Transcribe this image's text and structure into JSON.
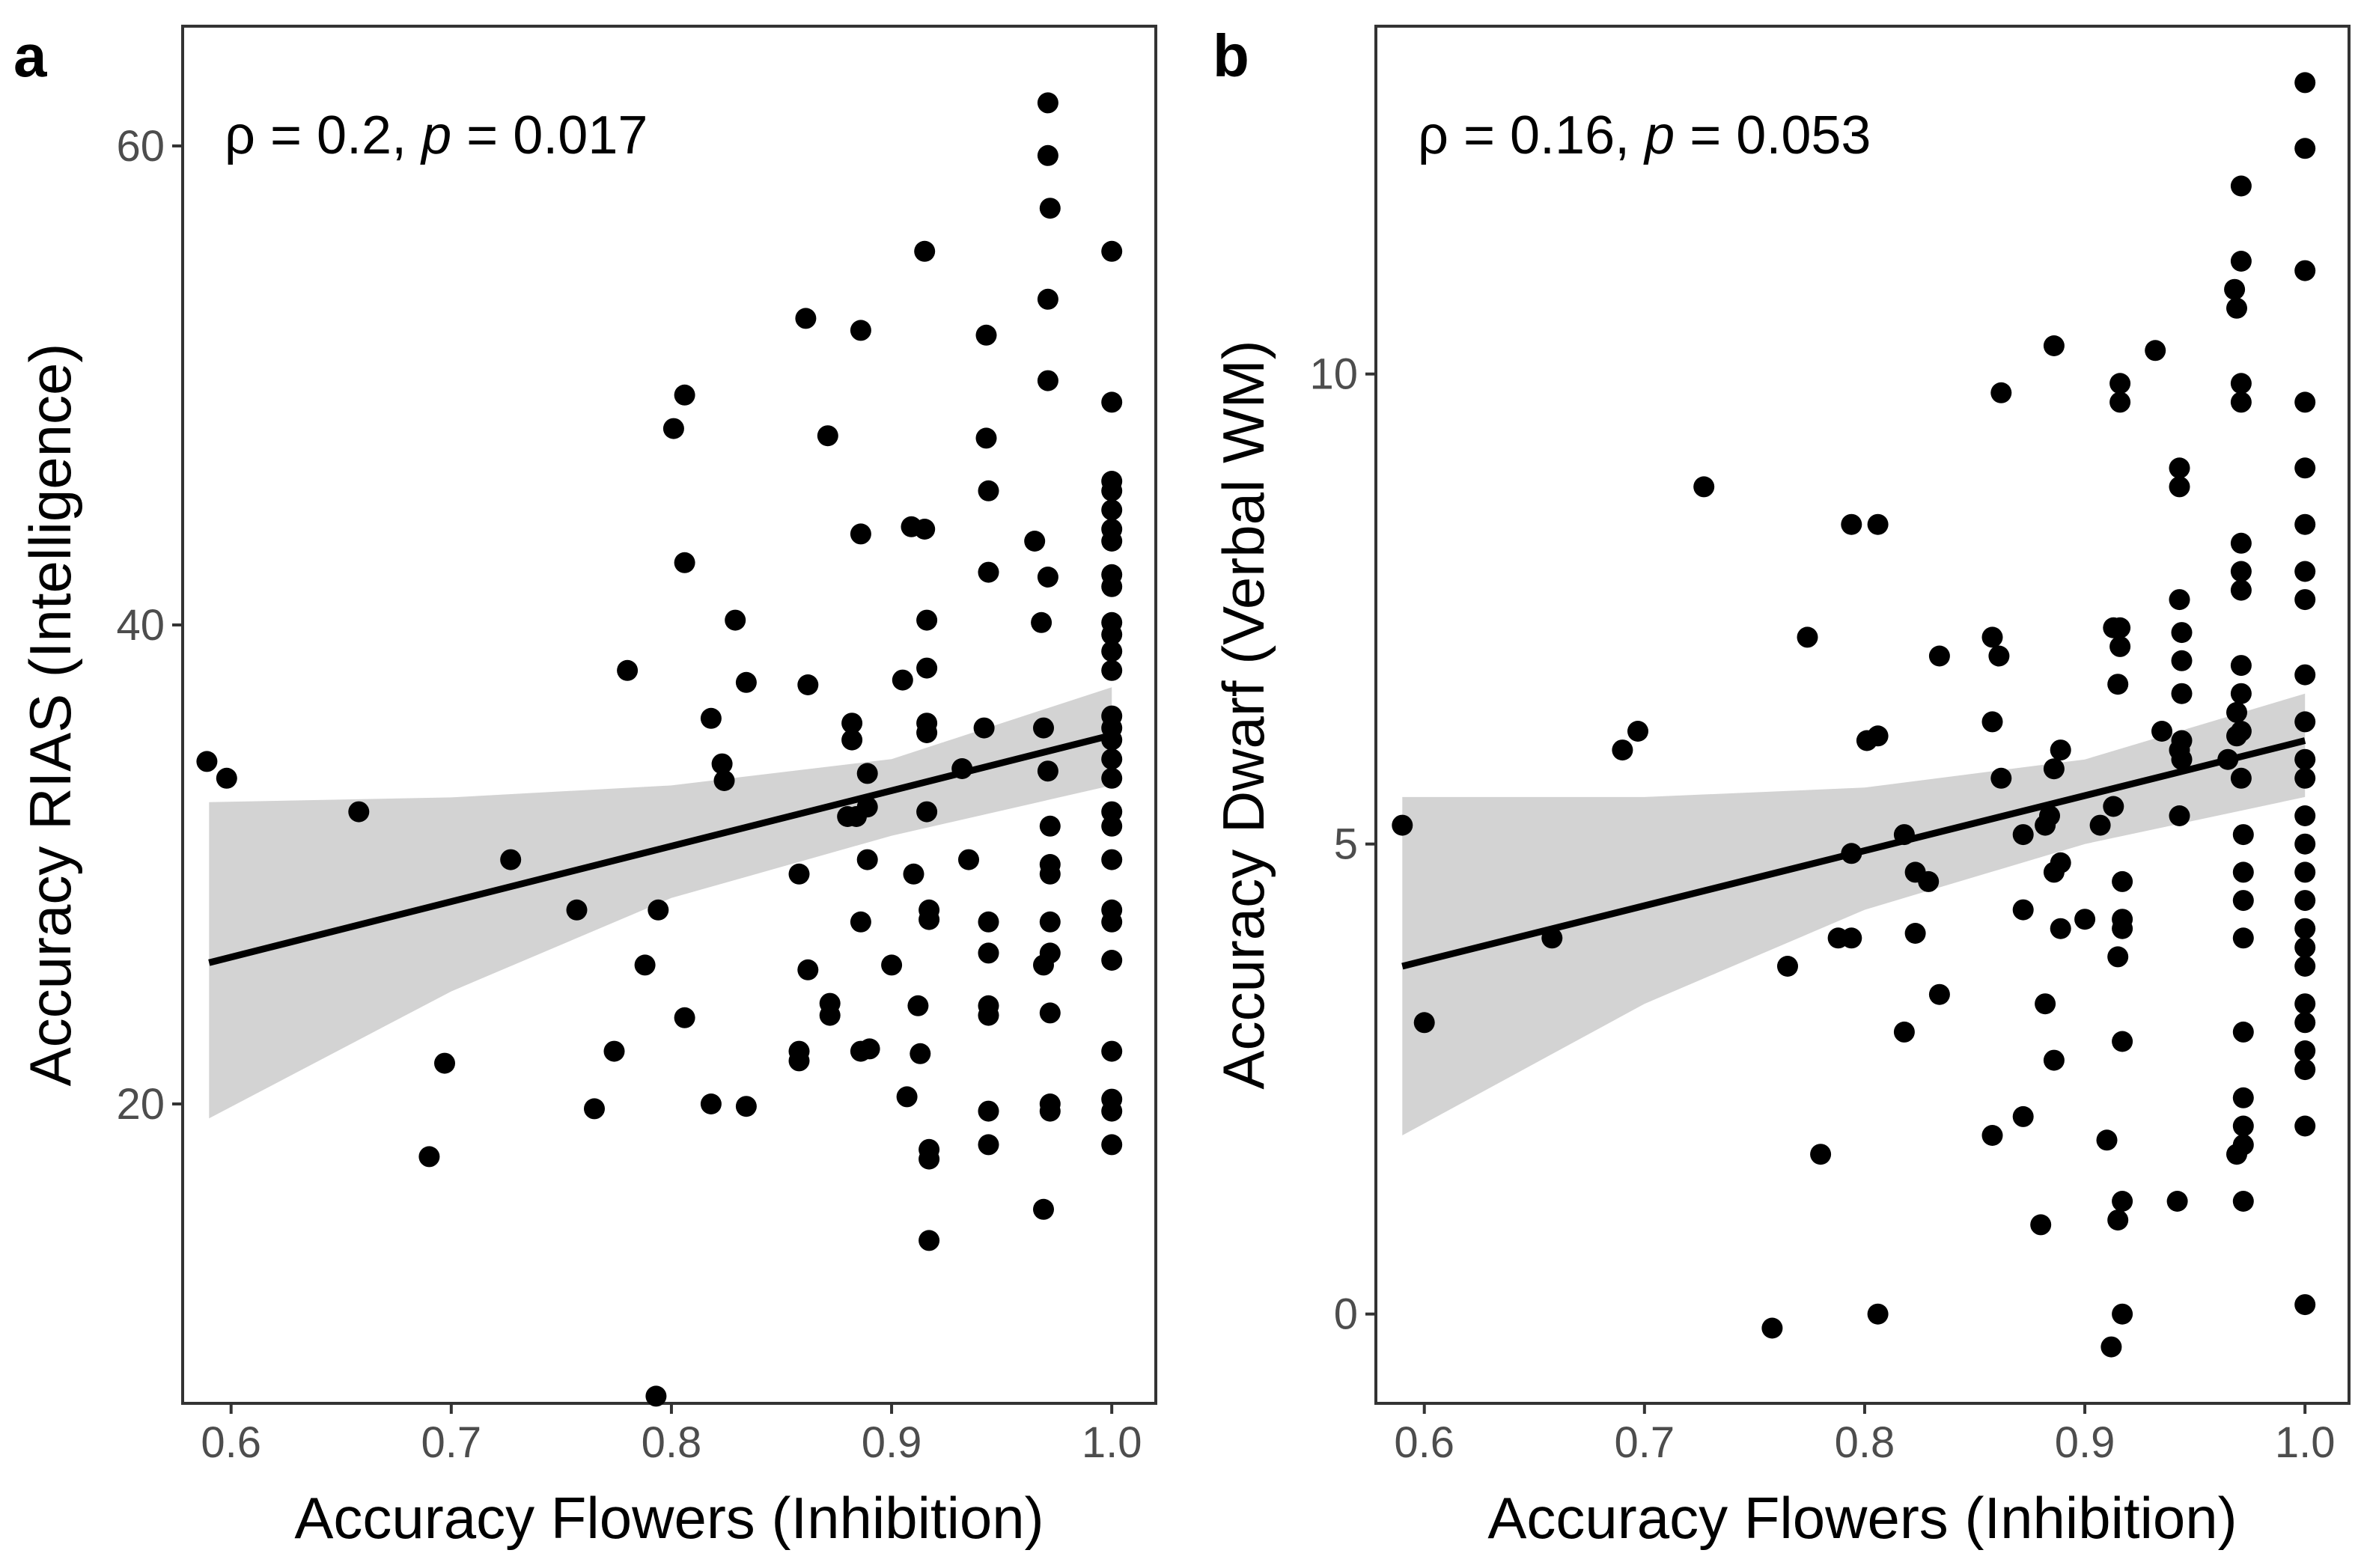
{
  "chart_data": [
    {
      "panel": "a",
      "type": "scatter",
      "xlabel": "Accuracy Flowers (Inhibition)",
      "ylabel": "Accuracy RIAS (Intelligence)",
      "annotation": {
        "rho": "ρ = 0.2,",
        "p": "p = 0.017"
      },
      "xlim": [
        0.578,
        1.02
      ],
      "ylim": [
        7.5,
        65
      ],
      "xticks": [
        0.6,
        0.7,
        0.8,
        0.9,
        1.0
      ],
      "xtick_labels": [
        "0.6",
        "0.7",
        "0.8",
        "0.9",
        "1.0"
      ],
      "yticks": [
        20,
        40,
        60
      ],
      "ytick_labels": [
        "20",
        "40",
        "60"
      ],
      "grid": false,
      "colors": {
        "points": "#000000",
        "line": "#000000",
        "band": "#d3d3d3"
      },
      "regression": {
        "x": [
          0.59,
          1.0
        ],
        "y": [
          25.9,
          35.4
        ]
      },
      "confidence_band": {
        "x": [
          0.59,
          0.7,
          0.8,
          0.9,
          1.0
        ],
        "lower": [
          19.4,
          24.7,
          28.6,
          31.2,
          33.3
        ],
        "upper": [
          32.6,
          32.8,
          33.3,
          34.4,
          37.4
        ]
      },
      "points": [
        [
          0.589,
          34.3
        ],
        [
          0.598,
          33.6
        ],
        [
          0.658,
          32.2
        ],
        [
          0.69,
          17.8
        ],
        [
          0.697,
          21.7
        ],
        [
          0.727,
          30.2
        ],
        [
          0.757,
          28.1
        ],
        [
          0.765,
          19.8
        ],
        [
          0.774,
          22.2
        ],
        [
          0.78,
          38.1
        ],
        [
          0.788,
          25.8
        ],
        [
          0.794,
          28.1
        ],
        [
          0.793,
          7.8
        ],
        [
          0.801,
          48.2
        ],
        [
          0.806,
          49.6
        ],
        [
          0.806,
          42.6
        ],
        [
          0.806,
          23.6
        ],
        [
          0.818,
          36.1
        ],
        [
          0.818,
          20.0
        ],
        [
          0.823,
          34.2
        ],
        [
          0.824,
          33.5
        ],
        [
          0.829,
          40.2
        ],
        [
          0.834,
          37.6
        ],
        [
          0.834,
          19.9
        ],
        [
          0.858,
          29.6
        ],
        [
          0.858,
          22.2
        ],
        [
          0.858,
          21.8
        ],
        [
          0.861,
          52.8
        ],
        [
          0.862,
          37.5
        ],
        [
          0.862,
          25.6
        ],
        [
          0.871,
          47.9
        ],
        [
          0.872,
          24.2
        ],
        [
          0.872,
          23.7
        ],
        [
          0.88,
          32.0
        ],
        [
          0.882,
          35.9
        ],
        [
          0.882,
          35.2
        ],
        [
          0.884,
          32.0
        ],
        [
          0.886,
          52.3
        ],
        [
          0.886,
          43.8
        ],
        [
          0.886,
          27.6
        ],
        [
          0.886,
          22.2
        ],
        [
          0.889,
          33.8
        ],
        [
          0.889,
          32.4
        ],
        [
          0.889,
          30.2
        ],
        [
          0.89,
          22.3
        ],
        [
          0.9,
          25.8
        ],
        [
          0.905,
          37.7
        ],
        [
          0.907,
          20.3
        ],
        [
          0.909,
          44.1
        ],
        [
          0.91,
          29.6
        ],
        [
          0.912,
          24.1
        ],
        [
          0.913,
          22.1
        ],
        [
          0.915,
          55.6
        ],
        [
          0.915,
          44.0
        ],
        [
          0.916,
          40.2
        ],
        [
          0.916,
          38.2
        ],
        [
          0.916,
          35.9
        ],
        [
          0.916,
          35.5
        ],
        [
          0.916,
          32.2
        ],
        [
          0.917,
          28.1
        ],
        [
          0.917,
          27.7
        ],
        [
          0.917,
          18.1
        ],
        [
          0.917,
          17.7
        ],
        [
          0.917,
          14.3
        ],
        [
          0.932,
          34.0
        ],
        [
          0.935,
          30.2
        ],
        [
          0.942,
          35.7
        ],
        [
          0.943,
          52.1
        ],
        [
          0.943,
          47.8
        ],
        [
          0.944,
          45.6
        ],
        [
          0.944,
          42.2
        ],
        [
          0.944,
          27.6
        ],
        [
          0.944,
          26.3
        ],
        [
          0.944,
          24.1
        ],
        [
          0.944,
          23.7
        ],
        [
          0.944,
          19.7
        ],
        [
          0.944,
          18.3
        ],
        [
          0.965,
          43.5
        ],
        [
          0.968,
          40.1
        ],
        [
          0.969,
          35.7
        ],
        [
          0.969,
          25.8
        ],
        [
          0.969,
          15.6
        ],
        [
          0.971,
          61.8
        ],
        [
          0.971,
          59.6
        ],
        [
          0.971,
          53.6
        ],
        [
          0.971,
          50.2
        ],
        [
          0.971,
          42.0
        ],
        [
          0.971,
          33.9
        ],
        [
          0.972,
          57.4
        ],
        [
          0.972,
          31.6
        ],
        [
          0.972,
          30.0
        ],
        [
          0.972,
          29.6
        ],
        [
          0.972,
          27.6
        ],
        [
          0.972,
          26.3
        ],
        [
          0.972,
          23.8
        ],
        [
          0.972,
          20.0
        ],
        [
          0.972,
          19.7
        ],
        [
          1.0,
          55.6
        ],
        [
          1.0,
          49.3
        ],
        [
          1.0,
          46.0
        ],
        [
          1.0,
          45.6
        ],
        [
          1.0,
          44.8
        ],
        [
          1.0,
          44.0
        ],
        [
          1.0,
          43.5
        ],
        [
          1.0,
          42.1
        ],
        [
          1.0,
          41.6
        ],
        [
          1.0,
          40.1
        ],
        [
          1.0,
          39.6
        ],
        [
          1.0,
          38.9
        ],
        [
          1.0,
          38.1
        ],
        [
          1.0,
          36.2
        ],
        [
          1.0,
          35.7
        ],
        [
          1.0,
          35.2
        ],
        [
          1.0,
          34.4
        ],
        [
          1.0,
          33.6
        ],
        [
          1.0,
          32.2
        ],
        [
          1.0,
          31.6
        ],
        [
          1.0,
          30.2
        ],
        [
          1.0,
          28.1
        ],
        [
          1.0,
          27.6
        ],
        [
          1.0,
          26.0
        ],
        [
          1.0,
          22.2
        ],
        [
          1.0,
          20.2
        ],
        [
          1.0,
          19.7
        ],
        [
          1.0,
          18.3
        ]
      ]
    },
    {
      "panel": "b",
      "type": "scatter",
      "xlabel": "Accuracy Flowers (Inhibition)",
      "ylabel": "Accuracy Dwarf (Verbal WM)",
      "annotation": {
        "rho": "ρ = 0.16,",
        "p": "p = 0.053"
      },
      "xlim": [
        0.578,
        1.02
      ],
      "ylim": [
        -0.95,
        13.7
      ],
      "xticks": [
        0.6,
        0.7,
        0.8,
        0.9,
        1.0
      ],
      "xtick_labels": [
        "0.6",
        "0.7",
        "0.8",
        "0.9",
        "1.0"
      ],
      "yticks": [
        0,
        5,
        10
      ],
      "ytick_labels": [
        "0",
        "5",
        "10"
      ],
      "grid": false,
      "colors": {
        "points": "#000000",
        "line": "#000000",
        "band": "#d3d3d3"
      },
      "regression": {
        "x": [
          0.59,
          1.0
        ],
        "y": [
          3.7,
          6.1
        ]
      },
      "confidence_band": {
        "x": [
          0.59,
          0.7,
          0.8,
          0.9,
          1.0
        ],
        "lower": [
          1.9,
          3.3,
          4.3,
          5.0,
          5.5
        ],
        "upper": [
          5.5,
          5.5,
          5.6,
          5.9,
          6.6
        ]
      },
      "points": [
        [
          0.59,
          5.2
        ],
        [
          0.6,
          3.1
        ],
        [
          0.658,
          4.0
        ],
        [
          0.69,
          6.0
        ],
        [
          0.697,
          6.2
        ],
        [
          0.727,
          8.8
        ],
        [
          0.765,
          3.7
        ],
        [
          0.758,
          -0.15
        ],
        [
          0.774,
          7.2
        ],
        [
          0.78,
          1.7
        ],
        [
          0.788,
          4.0
        ],
        [
          0.794,
          8.4
        ],
        [
          0.794,
          4.9
        ],
        [
          0.794,
          4.0
        ],
        [
          0.801,
          6.1
        ],
        [
          0.806,
          8.4
        ],
        [
          0.806,
          6.15
        ],
        [
          0.806,
          0.0
        ],
        [
          0.818,
          5.1
        ],
        [
          0.818,
          3.0
        ],
        [
          0.823,
          4.7
        ],
        [
          0.823,
          4.05
        ],
        [
          0.829,
          4.6
        ],
        [
          0.834,
          7.0
        ],
        [
          0.834,
          3.4
        ],
        [
          0.858,
          7.2
        ],
        [
          0.858,
          6.3
        ],
        [
          0.858,
          1.9
        ],
        [
          0.861,
          7.0
        ],
        [
          0.862,
          9.8
        ],
        [
          0.862,
          5.7
        ],
        [
          0.872,
          5.1
        ],
        [
          0.872,
          4.3
        ],
        [
          0.872,
          2.1
        ],
        [
          0.88,
          0.95
        ],
        [
          0.882,
          5.2
        ],
        [
          0.882,
          3.3
        ],
        [
          0.884,
          5.3
        ],
        [
          0.886,
          10.3
        ],
        [
          0.886,
          5.8
        ],
        [
          0.886,
          4.7
        ],
        [
          0.886,
          2.7
        ],
        [
          0.889,
          6.0
        ],
        [
          0.889,
          4.8
        ],
        [
          0.889,
          4.1
        ],
        [
          0.9,
          4.2
        ],
        [
          0.907,
          5.2
        ],
        [
          0.91,
          1.85
        ],
        [
          0.912,
          -0.35
        ],
        [
          0.913,
          7.3
        ],
        [
          0.913,
          5.4
        ],
        [
          0.915,
          6.7
        ],
        [
          0.915,
          3.8
        ],
        [
          0.915,
          1.0
        ],
        [
          0.916,
          9.9
        ],
        [
          0.916,
          9.7
        ],
        [
          0.916,
          7.3
        ],
        [
          0.916,
          7.1
        ],
        [
          0.917,
          4.6
        ],
        [
          0.917,
          4.2
        ],
        [
          0.917,
          4.1
        ],
        [
          0.917,
          2.9
        ],
        [
          0.917,
          1.2
        ],
        [
          0.917,
          0.0
        ],
        [
          0.932,
          10.25
        ],
        [
          0.935,
          6.2
        ],
        [
          0.942,
          1.2
        ],
        [
          0.943,
          9.0
        ],
        [
          0.943,
          8.8
        ],
        [
          0.943,
          7.6
        ],
        [
          0.943,
          6.0
        ],
        [
          0.943,
          5.3
        ],
        [
          0.944,
          7.25
        ],
        [
          0.944,
          6.95
        ],
        [
          0.944,
          6.6
        ],
        [
          0.944,
          6.1
        ],
        [
          0.944,
          5.9
        ],
        [
          0.965,
          5.9
        ],
        [
          0.968,
          10.9
        ],
        [
          0.969,
          10.7
        ],
        [
          0.969,
          6.4
        ],
        [
          0.969,
          6.15
        ],
        [
          0.969,
          1.7
        ],
        [
          0.971,
          12.0
        ],
        [
          0.971,
          11.2
        ],
        [
          0.971,
          9.9
        ],
        [
          0.971,
          9.7
        ],
        [
          0.971,
          8.2
        ],
        [
          0.971,
          7.9
        ],
        [
          0.971,
          7.7
        ],
        [
          0.971,
          6.9
        ],
        [
          0.971,
          6.6
        ],
        [
          0.971,
          6.2
        ],
        [
          0.971,
          5.7
        ],
        [
          0.972,
          5.1
        ],
        [
          0.972,
          4.7
        ],
        [
          0.972,
          4.4
        ],
        [
          0.972,
          4.0
        ],
        [
          0.972,
          3.0
        ],
        [
          0.972,
          2.3
        ],
        [
          0.972,
          2.0
        ],
        [
          0.972,
          1.8
        ],
        [
          0.972,
          1.2
        ],
        [
          1.0,
          13.1
        ],
        [
          1.0,
          12.4
        ],
        [
          1.0,
          11.1
        ],
        [
          1.0,
          9.7
        ],
        [
          1.0,
          9.0
        ],
        [
          1.0,
          8.4
        ],
        [
          1.0,
          7.9
        ],
        [
          1.0,
          7.6
        ],
        [
          1.0,
          6.8
        ],
        [
          1.0,
          6.3
        ],
        [
          1.0,
          5.9
        ],
        [
          1.0,
          5.7
        ],
        [
          1.0,
          5.3
        ],
        [
          1.0,
          5.0
        ],
        [
          1.0,
          4.7
        ],
        [
          1.0,
          4.4
        ],
        [
          1.0,
          4.1
        ],
        [
          1.0,
          3.9
        ],
        [
          1.0,
          3.7
        ],
        [
          1.0,
          3.3
        ],
        [
          1.0,
          3.1
        ],
        [
          1.0,
          2.8
        ],
        [
          1.0,
          2.6
        ],
        [
          1.0,
          2.0
        ],
        [
          1.0,
          0.1
        ]
      ]
    }
  ]
}
